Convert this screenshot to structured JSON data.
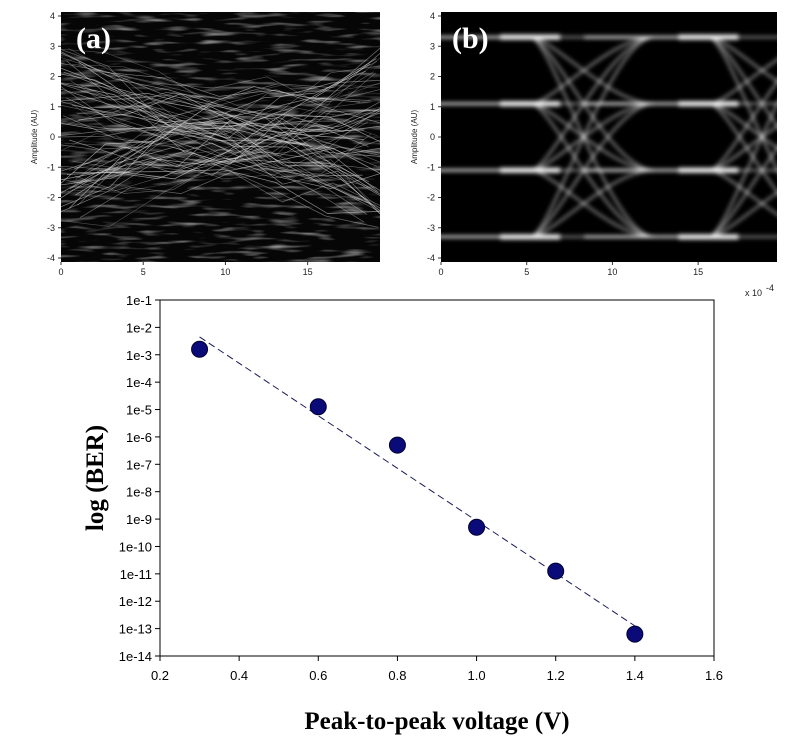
{
  "panels": [
    {
      "label": "(a)",
      "ylabel": "Amplitude (AU)",
      "yticks": [
        "4",
        "3",
        "2",
        "1",
        "0",
        "-1",
        "-2",
        "-3",
        "-4"
      ],
      "xticks": [
        "0",
        "5",
        "10",
        "15"
      ],
      "exponent": ""
    },
    {
      "label": "(b)",
      "ylabel": "Amplitude (AU)",
      "yticks": [
        "4",
        "3",
        "2",
        "1",
        "0",
        "-1",
        "-2",
        "-3",
        "-4"
      ],
      "xticks": [
        "0",
        "5",
        "10",
        "15"
      ],
      "exponent": "x 10"
    }
  ],
  "chart_data": {
    "type": "scatter",
    "xlabel": "Peak-to-peak voltage (V)",
    "ylabel": "log (BER)",
    "y_scale": "log",
    "xlim": [
      0.2,
      1.6
    ],
    "xticks": [
      "0.2",
      "0.4",
      "0.6",
      "0.8",
      "1.0",
      "1.2",
      "1.4",
      "1.6"
    ],
    "ylim": [
      -14,
      -1
    ],
    "yticks": [
      "1e-1",
      "1e-2",
      "1e-3",
      "1e-4",
      "1e-5",
      "1e-6",
      "1e-7",
      "1e-8",
      "1e-9",
      "1e-10",
      "1e-11",
      "1e-12",
      "1e-13",
      "1e-14"
    ],
    "x": [
      0.3,
      0.6,
      0.8,
      1.0,
      1.2,
      1.4
    ],
    "y": [
      -2.8,
      -4.9,
      -6.3,
      -9.3,
      -10.9,
      -13.2
    ],
    "trendline": {
      "x": [
        0.3,
        1.4
      ],
      "y": [
        -2.35,
        -12.9
      ]
    },
    "colors": {
      "marker": "#0a0a78",
      "trend": "#1a1a5a"
    }
  }
}
